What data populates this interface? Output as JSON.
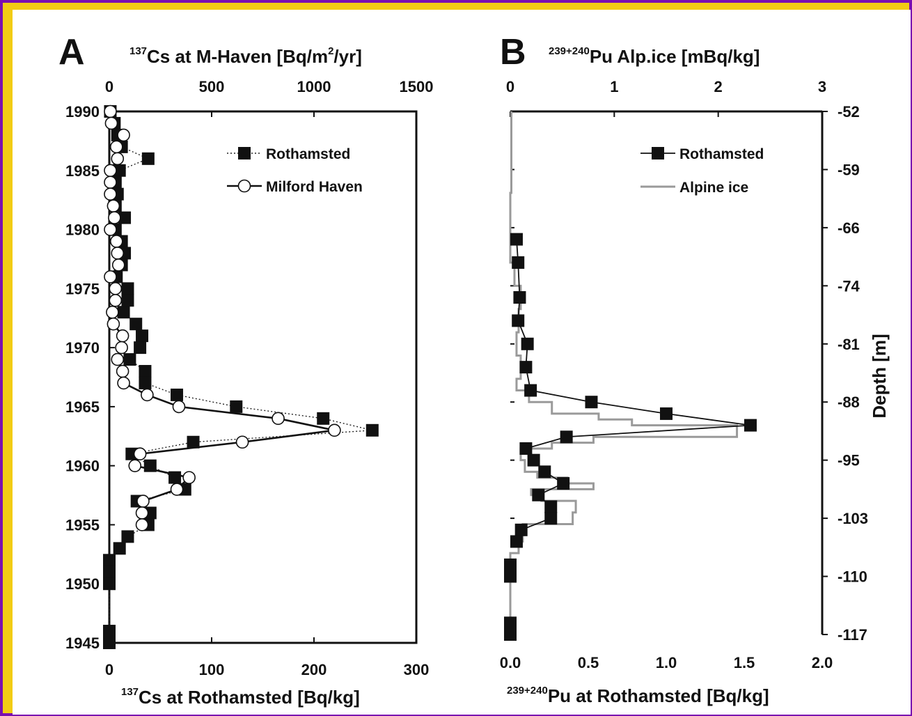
{
  "chart_data": [
    {
      "type": "scatter",
      "panel_label": "A",
      "top_axis": {
        "label_sup": "137",
        "label": "Cs at M-Haven [Bq/m",
        "label_sup2": "2",
        "label_end": "/yr]",
        "range": [
          0,
          1500
        ],
        "ticks": [
          "0",
          "500",
          "1000",
          "1500"
        ]
      },
      "bottom_axis": {
        "label_sup": "137",
        "label": "Cs at Rothamsted [Bq/kg]",
        "range": [
          0,
          300
        ],
        "ticks": [
          "0",
          "100",
          "200",
          "300"
        ]
      },
      "y_axis": {
        "range": [
          1945,
          1990
        ],
        "ticks": [
          "1990",
          "1985",
          "1980",
          "1975",
          "1970",
          "1965",
          "1960",
          "1955",
          "1950",
          "1945"
        ]
      },
      "legend": {
        "position": "top-right",
        "entries": [
          "Rothamsted",
          "Milford Haven"
        ]
      },
      "series": [
        {
          "name": "Rothamsted",
          "axis": "bottom",
          "marker": "filled-square",
          "line": "dotted",
          "points": [
            [
              1,
              1990
            ],
            [
              5,
              1989
            ],
            [
              8,
              1988
            ],
            [
              12,
              1987
            ],
            [
              38,
              1986
            ],
            [
              10,
              1985
            ],
            [
              6,
              1984
            ],
            [
              8,
              1983
            ],
            [
              6,
              1982
            ],
            [
              15,
              1981
            ],
            [
              6,
              1980
            ],
            [
              12,
              1979
            ],
            [
              15,
              1978
            ],
            [
              12,
              1977
            ],
            [
              7,
              1976
            ],
            [
              18,
              1975
            ],
            [
              18,
              1974
            ],
            [
              14,
              1973
            ],
            [
              26,
              1972
            ],
            [
              32,
              1971
            ],
            [
              30,
              1970
            ],
            [
              20,
              1969
            ],
            [
              35,
              1968
            ],
            [
              35,
              1967
            ],
            [
              66,
              1966
            ],
            [
              124,
              1965
            ],
            [
              209,
              1964
            ],
            [
              257,
              1963
            ],
            [
              82,
              1962
            ],
            [
              22,
              1961
            ],
            [
              40,
              1960
            ],
            [
              64,
              1959
            ],
            [
              74,
              1958
            ],
            [
              27,
              1957
            ],
            [
              40,
              1956
            ],
            [
              38,
              1955
            ],
            [
              18,
              1954
            ],
            [
              10,
              1953
            ],
            [
              0,
              1952
            ],
            [
              0,
              1951
            ],
            [
              0,
              1950
            ],
            [
              0,
              1946
            ],
            [
              0,
              1945
            ]
          ]
        },
        {
          "name": "Milford Haven",
          "axis": "top",
          "marker": "open-circle",
          "line": "solid",
          "points": [
            [
              5,
              1990
            ],
            [
              10,
              1989
            ],
            [
              70,
              1988
            ],
            [
              35,
              1987
            ],
            [
              40,
              1986
            ],
            [
              5,
              1985
            ],
            [
              5,
              1984
            ],
            [
              5,
              1983
            ],
            [
              20,
              1982
            ],
            [
              25,
              1981
            ],
            [
              5,
              1980
            ],
            [
              35,
              1979
            ],
            [
              40,
              1978
            ],
            [
              45,
              1977
            ],
            [
              5,
              1976
            ],
            [
              30,
              1975
            ],
            [
              30,
              1974
            ],
            [
              15,
              1973
            ],
            [
              20,
              1972
            ],
            [
              65,
              1971
            ],
            [
              60,
              1970
            ],
            [
              40,
              1969
            ],
            [
              65,
              1968
            ],
            [
              70,
              1967
            ],
            [
              185,
              1966
            ],
            [
              340,
              1965
            ],
            [
              825,
              1964
            ],
            [
              1100,
              1963
            ],
            [
              650,
              1962
            ],
            [
              150,
              1961
            ],
            [
              125,
              1960
            ],
            [
              390,
              1959
            ],
            [
              330,
              1958
            ],
            [
              165,
              1957
            ],
            [
              160,
              1956
            ],
            [
              160,
              1955
            ]
          ]
        }
      ]
    },
    {
      "type": "line",
      "panel_label": "B",
      "top_axis": {
        "label_sup": "239+240",
        "label": "Pu Alp.ice [mBq/kg]",
        "range": [
          0,
          3
        ],
        "ticks": [
          "0",
          "1",
          "2",
          "3"
        ]
      },
      "bottom_axis": {
        "label_sup": "239+240",
        "label": "Pu at Rothamsted [Bq/kg]",
        "range": [
          0,
          2
        ],
        "ticks": [
          "0.0",
          "0.5",
          "1.0",
          "1.5",
          "2.0"
        ]
      },
      "left_axis": {
        "range": [
          1945,
          1990
        ]
      },
      "right_axis": {
        "label": "Depth [m]",
        "ticks": [
          "-52",
          "-59",
          "-66",
          "-74",
          "-81",
          "-88",
          "-95",
          "-103",
          "-110",
          "-117"
        ]
      },
      "legend": {
        "position": "top-right",
        "entries": [
          "Rothamsted",
          "Alpine ice"
        ]
      },
      "series": [
        {
          "name": "Rothamsted",
          "axis": "bottom",
          "marker": "filled-square",
          "line": "solid",
          "points": [
            [
              0.04,
              1979
            ],
            [
              0.05,
              1977
            ],
            [
              0.06,
              1974
            ],
            [
              0.05,
              1972
            ],
            [
              0.11,
              1970
            ],
            [
              0.1,
              1968
            ],
            [
              0.13,
              1966
            ],
            [
              0.52,
              1965
            ],
            [
              1.0,
              1964
            ],
            [
              1.54,
              1963
            ],
            [
              0.36,
              1962
            ],
            [
              0.1,
              1961
            ],
            [
              0.15,
              1960
            ],
            [
              0.22,
              1959
            ],
            [
              0.34,
              1958
            ],
            [
              0.18,
              1957
            ],
            [
              0.26,
              1956
            ],
            [
              0.26,
              1955
            ],
            [
              0.07,
              1954
            ],
            [
              0.04,
              1953
            ],
            [
              0.0,
              1951
            ],
            [
              0.0,
              1950
            ],
            [
              0.0,
              1946
            ],
            [
              0.0,
              1945
            ]
          ]
        },
        {
          "name": "Alpine ice",
          "axis": "top",
          "line": "step",
          "points": [
            [
              0.01,
              1990
            ],
            [
              0.01,
              1986
            ],
            [
              0.0,
              1983
            ],
            [
              0.0,
              1980
            ],
            [
              0.04,
              1977
            ],
            [
              0.1,
              1975
            ],
            [
              0.08,
              1973
            ],
            [
              0.06,
              1971
            ],
            [
              0.1,
              1969
            ],
            [
              0.06,
              1967
            ],
            [
              0.18,
              1966
            ],
            [
              0.4,
              1965
            ],
            [
              0.85,
              1964
            ],
            [
              1.17,
              1963.5
            ],
            [
              2.18,
              1963
            ],
            [
              0.8,
              1962
            ],
            [
              0.4,
              1961.5
            ],
            [
              0.1,
              1961
            ],
            [
              0.14,
              1960
            ],
            [
              0.26,
              1959
            ],
            [
              0.55,
              1958.5
            ],
            [
              0.8,
              1958
            ],
            [
              0.2,
              1957.5
            ],
            [
              0.3,
              1957
            ],
            [
              0.63,
              1956.5
            ],
            [
              0.6,
              1955.5
            ],
            [
              0.12,
              1954.5
            ],
            [
              0.08,
              1953
            ],
            [
              0.0,
              1952
            ],
            [
              0.0,
              1945
            ]
          ]
        }
      ]
    }
  ]
}
